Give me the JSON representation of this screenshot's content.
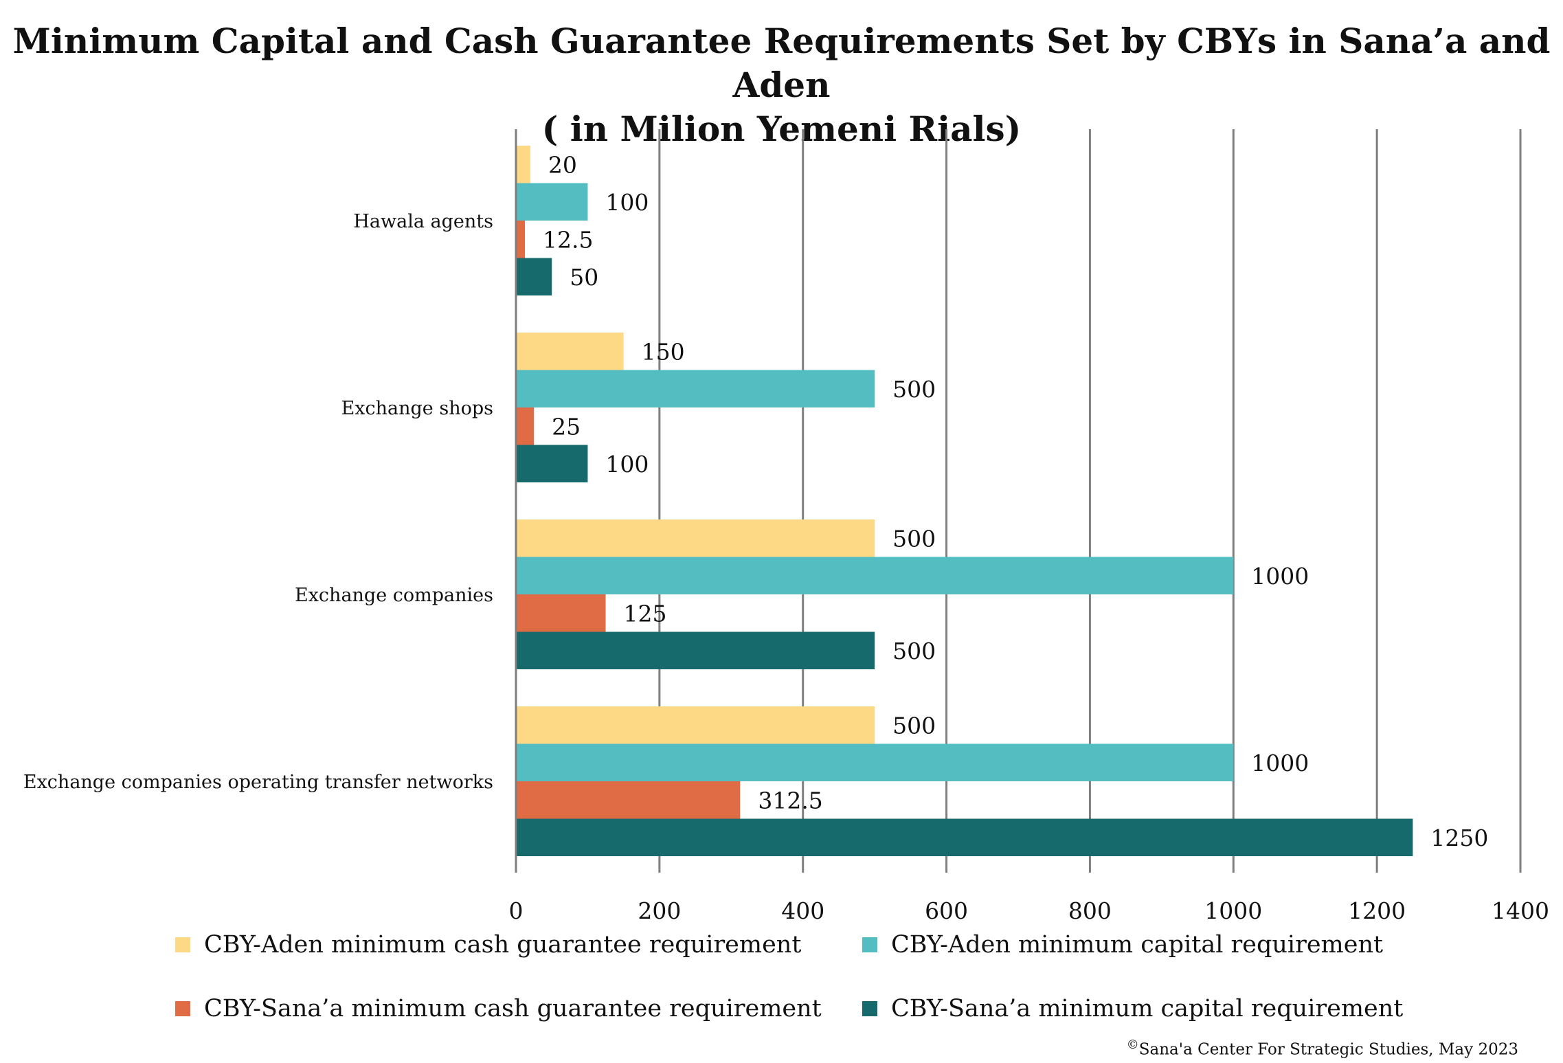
{
  "chart_data": {
    "type": "bar",
    "orientation": "horizontal",
    "title": [
      "Minimum Capital and Cash Guarantee Requirements Set by CBYs in Sana’a and Aden",
      "( in Milion Yemeni Rials)"
    ],
    "categories": [
      "Hawala agents",
      "Exchange shops",
      "Exchange companies",
      "Exchange companies operating transfer networks"
    ],
    "series": [
      {
        "name": "CBY-Aden minimum cash guarantee requirement",
        "color": "#FED985",
        "values": [
          20,
          150,
          500,
          500
        ],
        "labels": [
          "20",
          "150",
          "500",
          "500"
        ]
      },
      {
        "name": "CBY-Aden minimum capital requirement",
        "color": "#53BDC2",
        "values": [
          100,
          500,
          1000,
          1000
        ],
        "labels": [
          "100",
          "500",
          "1000",
          "1000"
        ]
      },
      {
        "name": "CBY-Sana’a minimum cash guarantee requirement",
        "color": "#E06C45",
        "values": [
          12.5,
          25,
          125,
          312.5
        ],
        "labels": [
          "12.5",
          "25",
          "125",
          "312.5"
        ]
      },
      {
        "name": "CBY-Sana’a minimum capital requirement",
        "color": "#166A6C",
        "values": [
          50,
          100,
          500,
          1250
        ],
        "labels": [
          "50",
          "100",
          "500",
          "1250"
        ]
      }
    ],
    "xlim": [
      0,
      1400
    ],
    "xticks": [
      "0",
      "200",
      "400",
      "600",
      "800",
      "1000",
      "1200",
      "1400"
    ],
    "xlabel": "",
    "ylabel": "",
    "grid": "vertical",
    "legend_position": "bottom"
  },
  "source": {
    "symbol": "©",
    "text": "Sana'a Center For Strategic Studies, May 2023"
  }
}
